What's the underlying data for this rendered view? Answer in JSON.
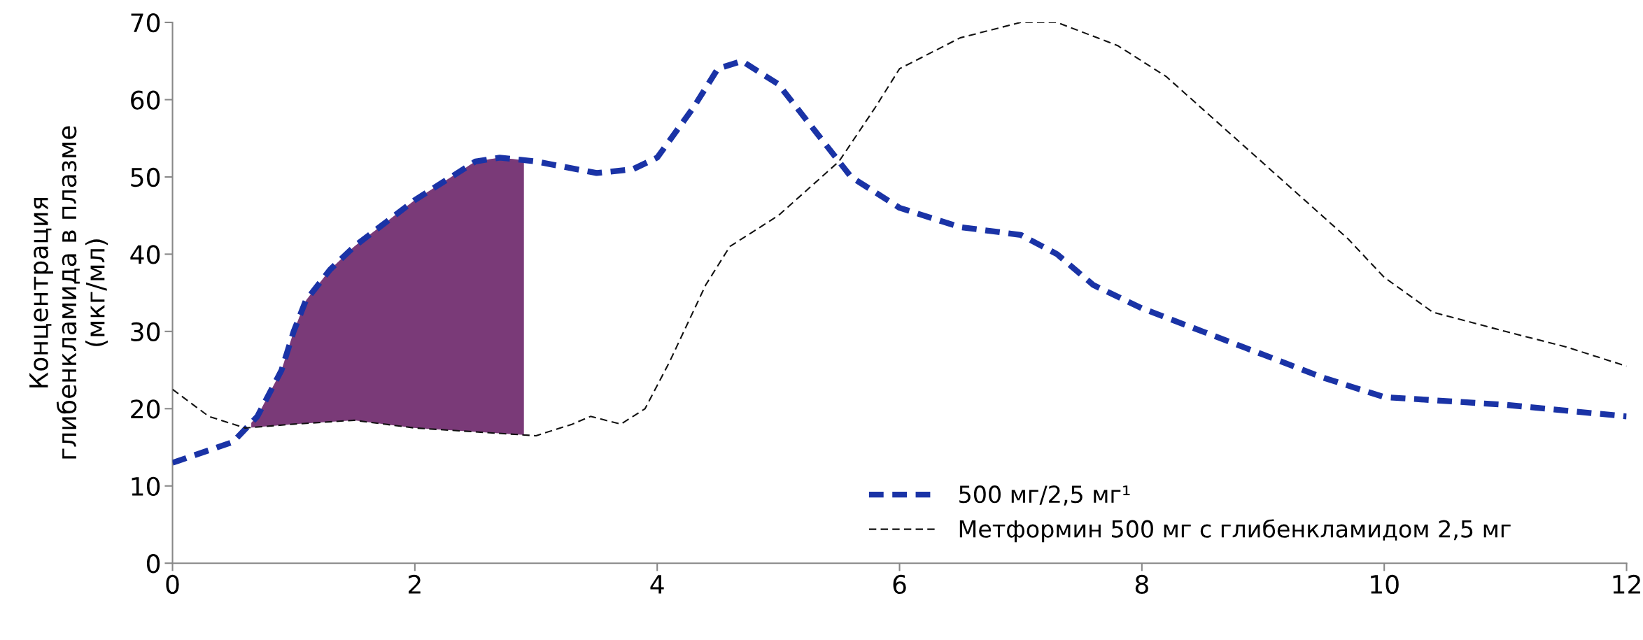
{
  "chart_data": {
    "type": "line",
    "ylabel": "Концентрация\nглибенкламида в плазме\n(мкг/мл)",
    "xlim": [
      0,
      12
    ],
    "xticks": [
      0,
      2,
      4,
      6,
      8,
      10,
      12
    ],
    "ylim": [
      0,
      70
    ],
    "yticks": [
      0,
      10,
      20,
      30,
      40,
      50,
      60,
      70
    ],
    "grid": false,
    "legend": "bottom",
    "series": [
      {
        "name": "500 мг/2,5 мг¹",
        "color": "#1a33a6",
        "line_style": "dashed",
        "x": [
          0,
          0.5,
          0.7,
          0.9,
          1.0,
          1.1,
          1.3,
          1.5,
          2.0,
          2.5,
          2.7,
          3.0,
          3.5,
          3.8,
          4.0,
          4.3,
          4.5,
          4.7,
          5.0,
          5.3,
          5.6,
          6.0,
          6.5,
          7.0,
          7.3,
          7.6,
          8.0,
          8.5,
          9.0,
          9.5,
          10.0,
          11.0,
          12.0
        ],
        "values": [
          13,
          15.7,
          19,
          25,
          30,
          34,
          38,
          41,
          47,
          52,
          52.5,
          52,
          50.5,
          51,
          52.5,
          59,
          64,
          65,
          62,
          56,
          50,
          46,
          43.5,
          42.5,
          40,
          36,
          33,
          30,
          27,
          24,
          21.5,
          20.5,
          19
        ]
      },
      {
        "name": "Метформин 500 мг с глибенкламидом 2,5 мг",
        "color": "#111111",
        "line_style": "dashed",
        "x": [
          0,
          0.3,
          0.6,
          1.0,
          1.5,
          2.0,
          2.5,
          3.0,
          3.3,
          3.45,
          3.7,
          3.9,
          4.1,
          4.4,
          4.6,
          5.0,
          5.5,
          5.8,
          6.0,
          6.5,
          7.0,
          7.3,
          7.8,
          8.2,
          8.7,
          9.2,
          9.7,
          10.0,
          10.4,
          11.0,
          11.5,
          12.0
        ],
        "values": [
          22.5,
          19,
          17.5,
          18,
          18.5,
          17.5,
          17,
          16.5,
          18,
          19,
          18,
          20,
          26,
          36,
          41,
          45,
          52,
          59,
          64,
          68,
          70,
          70,
          67,
          63,
          56,
          49,
          42,
          37,
          32.5,
          30,
          28,
          25.5
        ]
      }
    ]
  }
}
